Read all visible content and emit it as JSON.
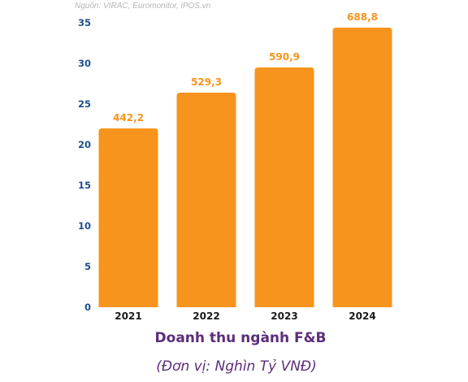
{
  "source": "Nguồn: VIRAC, Euromonitor, iPOS.vn",
  "chart_data": {
    "type": "bar",
    "title": "Doanh thu ngành F&B",
    "subtitle": "(Đơn vị: Nghìn Tỷ VNĐ)",
    "categories": [
      "2021",
      "2022",
      "2023",
      "2024"
    ],
    "values": [
      22.0,
      26.4,
      29.5,
      34.4
    ],
    "data_labels": [
      "442,2",
      "529,3",
      "590,9",
      "688,8"
    ],
    "ylim": [
      0,
      35
    ],
    "yticks": [
      0,
      5,
      10,
      15,
      20,
      25,
      30,
      35
    ],
    "grid": false,
    "bar_color": "#f7941d",
    "label_color": "#f7941d",
    "ytick_color": "#1f4f8f",
    "title_color": "#5b2d7a"
  }
}
